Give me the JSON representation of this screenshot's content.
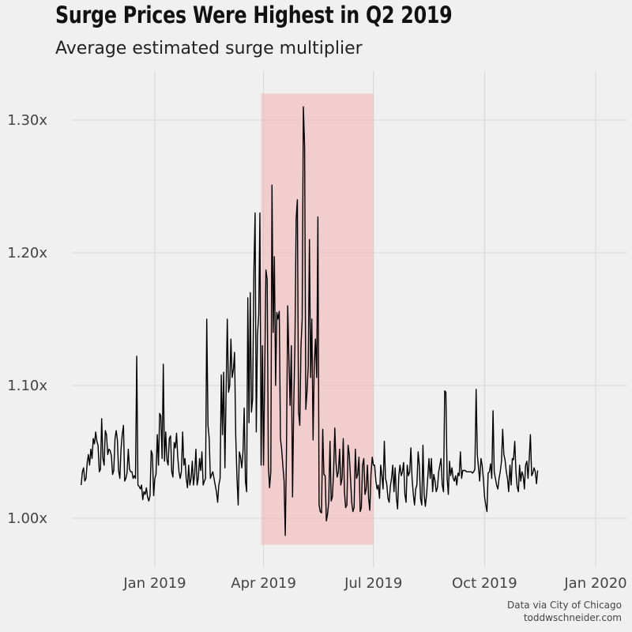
{
  "header": {
    "title": "Surge Prices Were Highest in Q2 2019",
    "subtitle": "Average estimated surge multiplier"
  },
  "caption": {
    "line1": "Data via City of Chicago",
    "line2": "toddwschneider.com"
  },
  "colors": {
    "background": "#f0f0f0",
    "grid": "#d6d6d6",
    "line": "#000000",
    "highlight": "#f1b6b6"
  },
  "chart_data": {
    "type": "line",
    "title": "Surge Prices Were Highest in Q2 2019",
    "subtitle": "Average estimated surge multiplier",
    "xlabel": "",
    "ylabel": "",
    "x_domain": [
      "2018-11-01",
      "2020-01-01"
    ],
    "ylim": [
      0.975,
      1.335
    ],
    "grid": true,
    "x_ticks": [
      {
        "date": "2019-01-01",
        "label": "Jan 2019"
      },
      {
        "date": "2019-04-01",
        "label": "Apr 2019"
      },
      {
        "date": "2019-07-01",
        "label": "Jul 2019"
      },
      {
        "date": "2019-10-01",
        "label": "Oct 2019"
      },
      {
        "date": "2020-01-01",
        "label": "Jan 2020"
      }
    ],
    "y_ticks": [
      {
        "value": 1.0,
        "label": "1.00x"
      },
      {
        "value": 1.1,
        "label": "1.10x"
      },
      {
        "value": 1.2,
        "label": "1.20x"
      },
      {
        "value": 1.3,
        "label": "1.30x"
      }
    ],
    "highlight": {
      "start": "2019-03-30",
      "end": "2019-07-01",
      "ymin": 0.98,
      "ymax": 1.32
    },
    "series": [
      {
        "start_date": "2018-11-01",
        "values": [
          1.025,
          1.035,
          1.038,
          1.028,
          1.03,
          1.042,
          1.048,
          1.04,
          1.052,
          1.045,
          1.06,
          1.056,
          1.065,
          1.058,
          1.055,
          1.035,
          1.037,
          1.075,
          1.045,
          1.04,
          1.066,
          1.063,
          1.048,
          1.052,
          1.051,
          1.047,
          1.033,
          1.036,
          1.06,
          1.066,
          1.059,
          1.036,
          1.03,
          1.052,
          1.063,
          1.07,
          1.028,
          1.03,
          1.034,
          1.052,
          1.037,
          1.035,
          1.035,
          1.03,
          1.032,
          1.03,
          1.122,
          1.025,
          1.024,
          1.022,
          1.025,
          1.014,
          1.02,
          1.018,
          1.023,
          1.016,
          1.013,
          1.017,
          1.051,
          1.048,
          1.017,
          1.03,
          1.033,
          1.063,
          1.04,
          1.079,
          1.077,
          1.045,
          1.116,
          1.043,
          1.065,
          1.044,
          1.04,
          1.06,
          1.062,
          1.035,
          1.031,
          1.057,
          1.053,
          1.064,
          1.046,
          1.035,
          1.03,
          1.035,
          1.065,
          1.04,
          1.045,
          1.03,
          1.023,
          1.04,
          1.025,
          1.03,
          1.043,
          1.025,
          1.033,
          1.052,
          1.025,
          1.03,
          1.045,
          1.036,
          1.05,
          1.025,
          1.028,
          1.03,
          1.15,
          1.07,
          1.06,
          1.03,
          1.033,
          1.035,
          1.03,
          1.025,
          1.02,
          1.012,
          1.025,
          1.03,
          1.108,
          1.063,
          1.11,
          1.038,
          1.095,
          1.15,
          1.095,
          1.1,
          1.135,
          1.106,
          1.112,
          1.125,
          1.062,
          1.03,
          1.01,
          1.05,
          1.046,
          1.038,
          1.05,
          1.083,
          1.028,
          1.02,
          1.166,
          1.072,
          1.17,
          1.08,
          1.09,
          1.187,
          1.23,
          1.065,
          1.138,
          1.153,
          1.23,
          1.04,
          1.13,
          1.04,
          1.11,
          1.187,
          1.18,
          1.04,
          1.023,
          1.035,
          1.251,
          1.14,
          1.197,
          1.1,
          1.155,
          1.15,
          1.156,
          1.06,
          1.052,
          1.04,
          1.028,
          0.987,
          1.05,
          1.16,
          1.12,
          1.085,
          1.13,
          1.016,
          1.085,
          1.13,
          1.226,
          1.24,
          1.08,
          1.07,
          1.13,
          1.15,
          1.31,
          1.28,
          1.082,
          1.095,
          1.115,
          1.21,
          1.106,
          1.15,
          1.059,
          1.116,
          1.135,
          1.106,
          1.227,
          1.01,
          1.005,
          1.004,
          1.067,
          1.033,
          1.032,
          0.998,
          1.003,
          1.012,
          1.058,
          1.013,
          1.016,
          1.035,
          1.068,
          1.042,
          1.031,
          1.035,
          1.052,
          1.025,
          1.03,
          1.06,
          1.02,
          1.008,
          1.01,
          1.055,
          1.048,
          1.03,
          1.012,
          1.005,
          1.008,
          1.052,
          1.03,
          1.033,
          1.046,
          1.005,
          1.008,
          1.04,
          1.045,
          1.018,
          1.022,
          1.04,
          1.015,
          1.006,
          1.033,
          1.046,
          1.04,
          1.04,
          1.028,
          1.022,
          1.025,
          1.015,
          1.04,
          1.032,
          1.022,
          1.058,
          1.03,
          1.026,
          1.015,
          1.012,
          1.024,
          1.03,
          1.04,
          1.02,
          1.038,
          1.015,
          1.007,
          1.032,
          1.04,
          1.032,
          1.035,
          1.042,
          1.018,
          1.012,
          1.04,
          1.032,
          1.035,
          1.053,
          1.03,
          1.018,
          1.01,
          1.022,
          1.025,
          1.05,
          1.04,
          1.015,
          1.01,
          1.055,
          1.018,
          1.009,
          1.018,
          1.031,
          1.045,
          1.03,
          1.045,
          1.02,
          1.033,
          1.028,
          1.02,
          1.023,
          1.035,
          1.04,
          1.045,
          1.025,
          1.02,
          1.096,
          1.095,
          1.03,
          1.018,
          1.043,
          1.032,
          1.038,
          1.03,
          1.028,
          1.032,
          1.025,
          1.034,
          1.032,
          1.05,
          1.03,
          1.036,
          1.036,
          1.036,
          1.035,
          1.035,
          1.035,
          1.035,
          1.035,
          1.034,
          1.035,
          1.037,
          1.097,
          1.048,
          1.038,
          1.028,
          1.045,
          1.04,
          1.03,
          1.016,
          1.01,
          1.005,
          1.034,
          1.035,
          1.041,
          1.03,
          1.081,
          1.035,
          1.03,
          1.025,
          1.022,
          1.03,
          1.035,
          1.043,
          1.067,
          1.048,
          1.044,
          1.035,
          1.03,
          1.02,
          1.04,
          1.025,
          1.045,
          1.044,
          1.058,
          1.035,
          1.024,
          1.02,
          1.04,
          1.028,
          1.035,
          1.032,
          1.022,
          1.04,
          1.043,
          1.03,
          1.045,
          1.063,
          1.032,
          1.034,
          1.038,
          1.035,
          1.026,
          1.036
        ]
      }
    ]
  }
}
